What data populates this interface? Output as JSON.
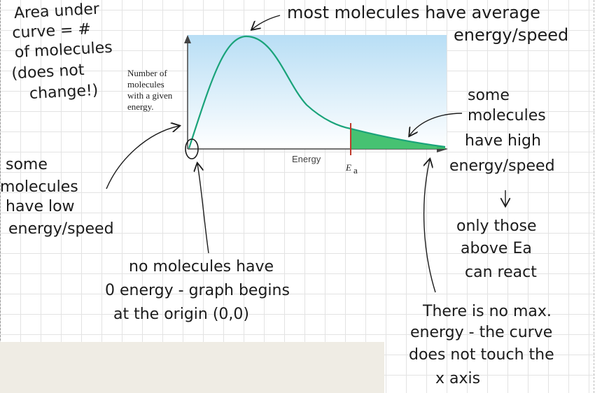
{
  "diagram": {
    "y_axis_label": [
      "Number of",
      "molecules",
      "with a given",
      "energy."
    ],
    "x_axis_label": "Energy",
    "threshold_label": "E",
    "threshold_subscript": "a"
  },
  "notes": {
    "area": [
      "Area under",
      "curve = #",
      "of molecules",
      "(does not",
      "change!)"
    ],
    "peak": [
      "most molecules have average",
      "energy/speed"
    ],
    "high": [
      "some",
      "molecules",
      "have high",
      "energy/speed"
    ],
    "low": [
      "some",
      "molecules",
      "have low",
      "energy/speed"
    ],
    "only": [
      "only those",
      "above Ea",
      "can react"
    ],
    "origin": [
      "no molecules have",
      "0 energy - graph begins",
      "at the origin (0,0)"
    ],
    "nomax": [
      "There is no max.",
      "energy - the curve",
      "does not touch the",
      "x axis"
    ]
  },
  "colors": {
    "curve": "#1aa37a",
    "shaded": "#3cbf6a",
    "threshold": "#c0392b",
    "sky_top": "#b8def5",
    "sky_bottom": "#ffffff"
  }
}
